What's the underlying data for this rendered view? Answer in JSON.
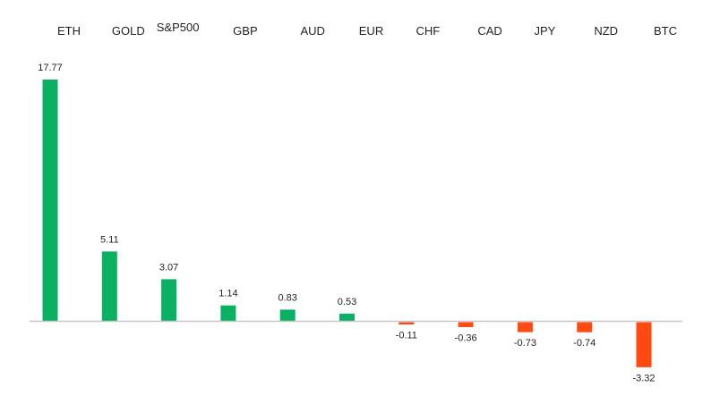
{
  "chart_data": {
    "type": "bar",
    "title": "",
    "xlabel": "",
    "ylabel": "",
    "categories": [
      "ETH",
      "GOLD",
      "S&P500",
      "GBP",
      "AUD",
      "EUR",
      "CHF",
      "CAD",
      "JPY",
      "NZD",
      "BTC"
    ],
    "values": [
      17.77,
      5.11,
      3.07,
      1.14,
      0.83,
      0.53,
      -0.11,
      -0.36,
      -0.73,
      -0.74,
      -3.32
    ],
    "value_labels": [
      "17.77",
      "5.11",
      "3.07",
      "1.14",
      "0.83",
      "0.53",
      "-0.11",
      "-0.36",
      "-0.73",
      "-0.74",
      "-3.32"
    ],
    "ylim": [
      -3.32,
      17.77
    ],
    "category_label_placement": "top",
    "grid": false,
    "colors": {
      "positive": "#0bb163",
      "negative": "#ff4a12",
      "axis": "#c8c8c8",
      "text": "#1f1f1f"
    }
  }
}
